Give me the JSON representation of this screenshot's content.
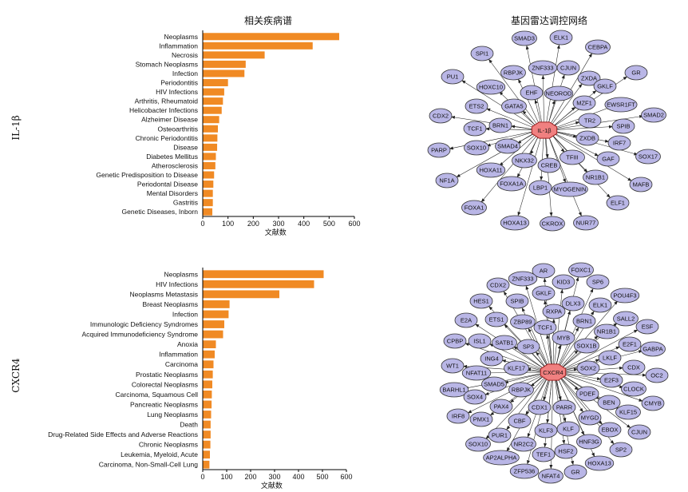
{
  "left_title": "相关疾病谱",
  "right_title": "基因雷达调控网络",
  "chart_data": [
    {
      "type": "bar",
      "orientation": "horizontal",
      "row_label": "IL-1β",
      "xlabel": "文献数",
      "xlim": [
        0,
        600
      ],
      "xticks": [
        "0",
        "100",
        "200",
        "300",
        "400",
        "500",
        "600"
      ],
      "categories": [
        "Neoplasms",
        "Inflammation",
        "Necrosis",
        "Stomach Neoplasms",
        "Infection",
        "Periodontitis",
        "HIV Infections",
        "Arthritis, Rheumatoid",
        "Helicobacter Infections",
        "Alzheimer Disease",
        "Osteoarthritis",
        "Chronic Periodontitis",
        "Disease",
        "Diabetes Mellitus",
        "Atherosclerosis",
        "Genetic Predisposition to Disease",
        "Periodontal Disease",
        "Mental Disorders",
        "Gastritis",
        "Genetic Diseases, Inborn"
      ],
      "values": [
        540,
        435,
        245,
        170,
        165,
        100,
        85,
        80,
        75,
        65,
        60,
        58,
        57,
        52,
        50,
        45,
        42,
        40,
        40,
        38
      ],
      "color": "#f08a24"
    },
    {
      "type": "bar",
      "orientation": "horizontal",
      "row_label": "CXCR4",
      "xlabel": "文献数",
      "xlim": [
        0,
        600
      ],
      "xticks": [
        "0",
        "100",
        "200",
        "300",
        "400",
        "500",
        "600"
      ],
      "categories": [
        "Neoplasms",
        "HIV Infections",
        "Neoplasms Metastasis",
        "Breast Neoplasms",
        "Infection",
        "Immunologic Deficiency Syndromes",
        "Acquired Immunodeficiency Syndrome",
        "Anoxia",
        "Inflammation",
        "Carcinoma",
        "Prostatic Neoplasms",
        "Colorectal Neoplasms",
        "Carcinoma, Squamous Cell",
        "Pancreatic Neoplasms",
        "Lung Neoplasms",
        "Death",
        "Drug-Related Side Effects and Adverse Reactions",
        "Chronic  Neoplasms",
        "Leukemia, Myeloid, Acute",
        "Carcinoma, Non-Small-Cell Lung"
      ],
      "values": [
        505,
        465,
        320,
        112,
        108,
        90,
        85,
        55,
        50,
        45,
        42,
        40,
        38,
        37,
        35,
        33,
        33,
        32,
        30,
        28
      ],
      "color": "#f08a24"
    }
  ],
  "networks": [
    {
      "hub": "IL-1β",
      "center": [
        682,
        163
      ],
      "color_node": "#b9b6e6",
      "color_hub": "#f08080",
      "nodes": [
        [
          "SMAD3",
          657,
          48
        ],
        [
          "ELK1",
          703,
          47
        ],
        [
          "CEBPA",
          749,
          59
        ],
        [
          "SPI1",
          604,
          67
        ],
        [
          "ZNF333",
          680,
          85
        ],
        [
          "CJUN",
          712,
          85
        ],
        [
          "RBPJK",
          643,
          91
        ],
        [
          "PU1",
          567,
          96
        ],
        [
          "ZXDA",
          738,
          98
        ],
        [
          "GR",
          797,
          91
        ],
        [
          "GKLF",
          758,
          108
        ],
        [
          "HOXC10",
          615,
          109
        ],
        [
          "EHF",
          666,
          116
        ],
        [
          "NEOROD",
          700,
          117
        ],
        [
          "MZF1",
          732,
          129
        ],
        [
          "EWSR1FT",
          778,
          131
        ],
        [
          "GATA5",
          644,
          133
        ],
        [
          "ETS2",
          597,
          133
        ],
        [
          "SMAD2",
          819,
          144
        ],
        [
          "CDX2",
          552,
          145
        ],
        [
          "TR2",
          739,
          151
        ],
        [
          "BRN1",
          627,
          157
        ],
        [
          "TCF1",
          595,
          161
        ],
        [
          "SPIB",
          781,
          158
        ],
        [
          "ZXDB",
          736,
          173
        ],
        [
          "IRF7",
          776,
          179
        ],
        [
          "SMAD4",
          636,
          183
        ],
        [
          "PARP",
          550,
          188
        ],
        [
          "SOX10",
          597,
          185
        ],
        [
          "SOX17",
          812,
          196
        ],
        [
          "TFIII",
          717,
          197
        ],
        [
          "GAF",
          762,
          199
        ],
        [
          "NKX32",
          657,
          201
        ],
        [
          "CREB",
          688,
          207
        ],
        [
          "HOXA11",
          615,
          213
        ],
        [
          "NF1A",
          560,
          226
        ],
        [
          "NR1B1",
          746,
          222
        ],
        [
          "FOXA1A",
          641,
          230
        ],
        [
          "MAFB",
          803,
          231
        ],
        [
          "LBP1",
          677,
          235
        ],
        [
          "MYOGENIN",
          714,
          237
        ],
        [
          "ELF1",
          774,
          254
        ],
        [
          "FOXA1",
          594,
          260
        ],
        [
          "HOXA13",
          645,
          279
        ],
        [
          "CKROX",
          692,
          280
        ],
        [
          "NUR77",
          734,
          279
        ]
      ]
    },
    {
      "hub": "CXCR4",
      "center": [
        693,
        466
      ],
      "color_node": "#b9b6e6",
      "color_hub": "#f08080",
      "nodes": [
        [
          "AR",
          681,
          339
        ],
        [
          "FOXC1",
          728,
          338
        ],
        [
          "ZNF333",
          655,
          349
        ],
        [
          "KID3",
          706,
          353
        ],
        [
          "SP6",
          749,
          353
        ],
        [
          "CDX2",
          624,
          357
        ],
        [
          "GKLF",
          681,
          367
        ],
        [
          "POU4F3",
          783,
          370
        ],
        [
          "HES1",
          603,
          377
        ],
        [
          "SPIB",
          648,
          377
        ],
        [
          "DLX3",
          718,
          380
        ],
        [
          "ELK1",
          752,
          382
        ],
        [
          "RXPA",
          694,
          390
        ],
        [
          "E2A",
          584,
          401
        ],
        [
          "ETS1",
          622,
          400
        ],
        [
          "ZBP89",
          655,
          403
        ],
        [
          "BRN1",
          732,
          402
        ],
        [
          "SALL2",
          784,
          399
        ],
        [
          "TCF1",
          683,
          410
        ],
        [
          "ESF",
          811,
          409
        ],
        [
          "NR1B1",
          760,
          415
        ],
        [
          "CPBP",
          570,
          427
        ],
        [
          "ISL1",
          601,
          427
        ],
        [
          "SATB1",
          632,
          429
        ],
        [
          "MYB",
          706,
          423
        ],
        [
          "SP3",
          662,
          434
        ],
        [
          "SOX1B",
          735,
          433
        ],
        [
          "E2F1",
          789,
          431
        ],
        [
          "GABPA",
          818,
          437
        ],
        [
          "LKLF",
          764,
          448
        ],
        [
          "ING4",
          616,
          449
        ],
        [
          "KLF17",
          647,
          461
        ],
        [
          "WT1",
          567,
          458
        ],
        [
          "SOX2",
          737,
          461
        ],
        [
          "CDX",
          794,
          460
        ],
        [
          "NFAT11",
          597,
          467
        ],
        [
          "OC2",
          823,
          470
        ],
        [
          "E2F3",
          766,
          476
        ],
        [
          "SMAD5",
          619,
          481
        ],
        [
          "CLOCK",
          794,
          487
        ],
        [
          "BARHL1",
          569,
          488
        ],
        [
          "RBPJK",
          653,
          488
        ],
        [
          "PDEF",
          736,
          493
        ],
        [
          "SOX4",
          595,
          497
        ],
        [
          "BEN",
          763,
          504
        ],
        [
          "CMYB",
          818,
          505
        ],
        [
          "PAX4",
          628,
          509
        ],
        [
          "CDX1",
          676,
          510
        ],
        [
          "PARR",
          707,
          510
        ],
        [
          "KLF15",
          787,
          516
        ],
        [
          "IRF8",
          574,
          521
        ],
        [
          "PMX1",
          603,
          525
        ],
        [
          "CBF",
          651,
          527
        ],
        [
          "MYGD",
          739,
          523
        ],
        [
          "EBOX",
          764,
          538
        ],
        [
          "KLF3",
          684,
          539
        ],
        [
          "KLF",
          712,
          537
        ],
        [
          "CJUN",
          801,
          541
        ],
        [
          "PUR1",
          626,
          545
        ],
        [
          "NR2C2",
          656,
          556
        ],
        [
          "HNF3G",
          738,
          553
        ],
        [
          "SOX10",
          599,
          556
        ],
        [
          "HSF2",
          709,
          565
        ],
        [
          "SP2",
          778,
          563
        ],
        [
          "TEF1",
          681,
          569
        ],
        [
          "AP2ALPHA",
          628,
          573
        ],
        [
          "HOXA13",
          751,
          580
        ],
        [
          "ZFP536",
          657,
          590
        ],
        [
          "NFAT4",
          690,
          596
        ],
        [
          "GR",
          721,
          591
        ]
      ]
    }
  ]
}
